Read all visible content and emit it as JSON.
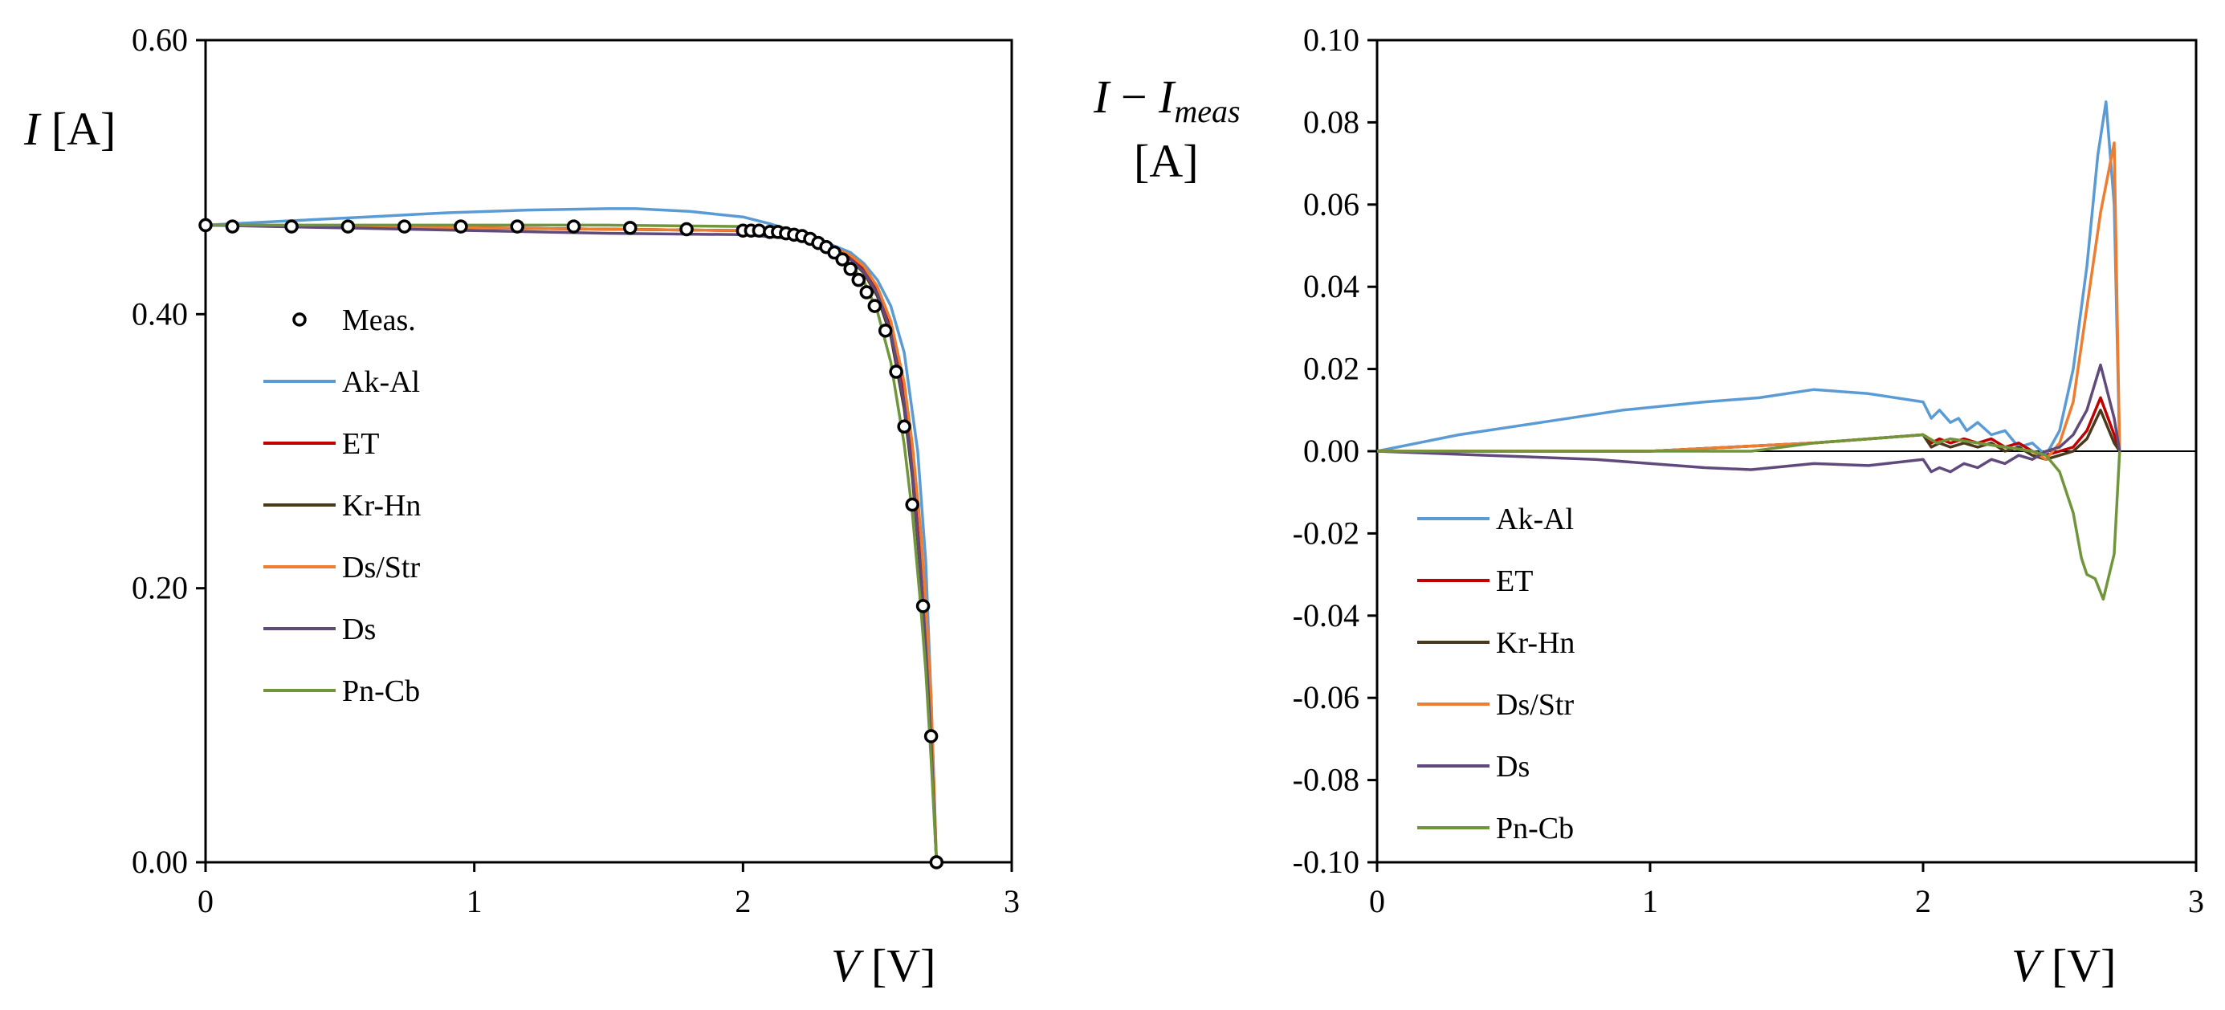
{
  "chart_data": [
    {
      "type": "line",
      "panel": "left",
      "xlabel_var": "V",
      "xlabel_unit": " [V]",
      "ylabel_var": "I",
      "ylabel_unit": " [A]",
      "xlim": [
        0,
        3
      ],
      "ylim": [
        0,
        0.6
      ],
      "xticks": [
        "0",
        "1",
        "2",
        "3"
      ],
      "yticks": [
        "0.00",
        "0.20",
        "0.40",
        "0.60"
      ],
      "legend": [
        {
          "name": "Meas.",
          "color": "#000000",
          "marker": "circle"
        },
        {
          "name": "Ak-Al",
          "color": "#5b9bd5"
        },
        {
          "name": "ET",
          "color": "#c00000"
        },
        {
          "name": "Kr-Hn",
          "color": "#4a3a1c"
        },
        {
          "name": "Ds/Str",
          "color": "#ed7d31"
        },
        {
          "name": "Ds",
          "color": "#604a7b"
        },
        {
          "name": "Pn-Cb",
          "color": "#70953b"
        }
      ],
      "measured": {
        "x": [
          0,
          0.1,
          0.32,
          0.53,
          0.74,
          0.95,
          1.16,
          1.37,
          1.58,
          1.79,
          2.0,
          2.03,
          2.06,
          2.1,
          2.13,
          2.16,
          2.19,
          2.22,
          2.25,
          2.28,
          2.31,
          2.34,
          2.37,
          2.4,
          2.43,
          2.46,
          2.49,
          2.53,
          2.57,
          2.6,
          2.63,
          2.67,
          2.7,
          2.72
        ],
        "y": [
          0.465,
          0.464,
          0.464,
          0.464,
          0.464,
          0.464,
          0.464,
          0.464,
          0.463,
          0.462,
          0.461,
          0.461,
          0.461,
          0.46,
          0.46,
          0.459,
          0.458,
          0.457,
          0.455,
          0.452,
          0.449,
          0.445,
          0.44,
          0.433,
          0.425,
          0.416,
          0.406,
          0.388,
          0.358,
          0.318,
          0.261,
          0.187,
          0.092,
          0.0
        ]
      },
      "series": [
        {
          "name": "Ak-Al",
          "color": "#5b9bd5",
          "x": [
            0,
            0.3,
            0.6,
            0.9,
            1.2,
            1.5,
            1.6,
            1.8,
            2.0,
            2.1,
            2.2,
            2.3,
            2.4,
            2.45,
            2.5,
            2.55,
            2.6,
            2.65,
            2.68,
            2.7,
            2.72
          ],
          "y": [
            0.465,
            0.468,
            0.471,
            0.474,
            0.476,
            0.477,
            0.477,
            0.475,
            0.471,
            0.466,
            0.46,
            0.453,
            0.445,
            0.437,
            0.425,
            0.406,
            0.372,
            0.3,
            0.22,
            0.12,
            0.0
          ]
        },
        {
          "name": "ET",
          "color": "#c00000",
          "x": [
            0,
            0.5,
            1.0,
            1.5,
            2.0,
            2.2,
            2.3,
            2.4,
            2.45,
            2.5,
            2.55,
            2.6,
            2.63,
            2.66,
            2.68,
            2.7,
            2.72
          ],
          "y": [
            0.465,
            0.464,
            0.463,
            0.462,
            0.461,
            0.457,
            0.452,
            0.442,
            0.433,
            0.418,
            0.39,
            0.34,
            0.29,
            0.22,
            0.16,
            0.09,
            0.0
          ]
        },
        {
          "name": "Kr-Hn",
          "color": "#4a3a1c",
          "x": [
            0,
            0.5,
            1.0,
            1.5,
            2.0,
            2.2,
            2.3,
            2.4,
            2.45,
            2.5,
            2.55,
            2.6,
            2.63,
            2.66,
            2.68,
            2.7,
            2.72
          ],
          "y": [
            0.465,
            0.464,
            0.463,
            0.462,
            0.461,
            0.457,
            0.451,
            0.44,
            0.43,
            0.413,
            0.384,
            0.331,
            0.281,
            0.212,
            0.155,
            0.085,
            0.0
          ]
        },
        {
          "name": "Ds/Str",
          "color": "#ed7d31",
          "x": [
            0,
            0.5,
            1.0,
            1.5,
            2.0,
            2.2,
            2.3,
            2.4,
            2.45,
            2.5,
            2.55,
            2.6,
            2.63,
            2.66,
            2.68,
            2.7,
            2.72
          ],
          "y": [
            0.465,
            0.464,
            0.463,
            0.462,
            0.461,
            0.457,
            0.452,
            0.443,
            0.435,
            0.42,
            0.395,
            0.35,
            0.305,
            0.245,
            0.19,
            0.12,
            0.0
          ]
        },
        {
          "name": "Ds",
          "color": "#604a7b",
          "x": [
            0,
            0.5,
            1.0,
            1.5,
            2.0,
            2.2,
            2.3,
            2.4,
            2.45,
            2.5,
            2.55,
            2.6,
            2.63,
            2.66,
            2.68,
            2.7,
            2.72
          ],
          "y": [
            0.465,
            0.463,
            0.461,
            0.459,
            0.458,
            0.455,
            0.45,
            0.44,
            0.431,
            0.415,
            0.387,
            0.335,
            0.285,
            0.215,
            0.158,
            0.088,
            0.0
          ]
        },
        {
          "name": "Pn-Cb",
          "color": "#70953b",
          "x": [
            0,
            0.5,
            1.0,
            1.5,
            2.0,
            2.2,
            2.3,
            2.4,
            2.45,
            2.5,
            2.55,
            2.6,
            2.63,
            2.66,
            2.68,
            2.7,
            2.72
          ],
          "y": [
            0.465,
            0.465,
            0.465,
            0.465,
            0.464,
            0.459,
            0.451,
            0.436,
            0.424,
            0.402,
            0.365,
            0.305,
            0.255,
            0.19,
            0.14,
            0.075,
            0.0
          ]
        }
      ]
    },
    {
      "type": "line",
      "panel": "right",
      "xlabel_var": "V",
      "xlabel_unit": " [V]",
      "ylabel_var": "I",
      "ylabel_minus": " − ",
      "ylabel_sub_var": "I",
      "ylabel_sub": "meas",
      "ylabel_unit": "[A]",
      "xlim": [
        0,
        3
      ],
      "ylim": [
        -0.1,
        0.1
      ],
      "xticks": [
        "0",
        "1",
        "2",
        "3"
      ],
      "yticks": [
        "-0.10",
        "-0.08",
        "-0.06",
        "-0.04",
        "-0.02",
        "0.00",
        "0.02",
        "0.04",
        "0.06",
        "0.08",
        "0.10"
      ],
      "legend": [
        {
          "name": "Ak-Al",
          "color": "#5b9bd5"
        },
        {
          "name": "ET",
          "color": "#c00000"
        },
        {
          "name": "Kr-Hn",
          "color": "#4a3a1c"
        },
        {
          "name": "Ds/Str",
          "color": "#ed7d31"
        },
        {
          "name": "Ds",
          "color": "#604a7b"
        },
        {
          "name": "Pn-Cb",
          "color": "#70953b"
        }
      ],
      "series": [
        {
          "name": "Ak-Al",
          "color": "#5b9bd5",
          "x": [
            0,
            0.3,
            0.6,
            0.9,
            1.2,
            1.4,
            1.6,
            1.8,
            2.0,
            2.03,
            2.06,
            2.1,
            2.13,
            2.16,
            2.2,
            2.25,
            2.3,
            2.35,
            2.4,
            2.45,
            2.5,
            2.55,
            2.6,
            2.64,
            2.67,
            2.7,
            2.72
          ],
          "y": [
            0.0,
            0.004,
            0.007,
            0.01,
            0.012,
            0.013,
            0.015,
            0.014,
            0.012,
            0.008,
            0.01,
            0.007,
            0.008,
            0.005,
            0.007,
            0.004,
            0.005,
            0.001,
            0.002,
            -0.001,
            0.005,
            0.02,
            0.045,
            0.072,
            0.085,
            0.06,
            0.0
          ]
        },
        {
          "name": "ET",
          "color": "#c00000",
          "x": [
            0,
            0.5,
            1.0,
            1.6,
            2.0,
            2.03,
            2.06,
            2.1,
            2.15,
            2.2,
            2.25,
            2.3,
            2.35,
            2.4,
            2.45,
            2.5,
            2.55,
            2.6,
            2.65,
            2.7,
            2.72
          ],
          "y": [
            0.0,
            0.0,
            0.0,
            0.002,
            0.004,
            0.002,
            0.003,
            0.002,
            0.003,
            0.002,
            0.003,
            0.001,
            0.002,
            0.0,
            -0.001,
            0.0,
            0.001,
            0.005,
            0.013,
            0.004,
            0.0
          ]
        },
        {
          "name": "Kr-Hn",
          "color": "#4a3a1c",
          "x": [
            0,
            0.5,
            1.0,
            1.6,
            2.0,
            2.03,
            2.06,
            2.1,
            2.15,
            2.2,
            2.25,
            2.3,
            2.35,
            2.4,
            2.45,
            2.5,
            2.55,
            2.6,
            2.65,
            2.7,
            2.72
          ],
          "y": [
            0.0,
            0.0,
            0.0,
            0.002,
            0.004,
            0.001,
            0.002,
            0.001,
            0.002,
            0.001,
            0.002,
            0.0,
            0.001,
            -0.001,
            -0.002,
            -0.001,
            0.0,
            0.003,
            0.01,
            0.002,
            0.0
          ]
        },
        {
          "name": "Ds/Str",
          "color": "#ed7d31",
          "x": [
            0,
            0.5,
            1.0,
            1.6,
            2.0,
            2.05,
            2.1,
            2.2,
            2.3,
            2.4,
            2.45,
            2.5,
            2.55,
            2.6,
            2.65,
            2.7,
            2.72
          ],
          "y": [
            0.0,
            0.0,
            0.0,
            0.002,
            0.004,
            0.002,
            0.003,
            0.002,
            0.001,
            0.0,
            -0.002,
            0.002,
            0.012,
            0.035,
            0.058,
            0.075,
            0.0
          ]
        },
        {
          "name": "Ds",
          "color": "#604a7b",
          "x": [
            0,
            0.4,
            0.8,
            1.2,
            1.37,
            1.6,
            1.8,
            2.0,
            2.03,
            2.06,
            2.1,
            2.15,
            2.2,
            2.25,
            2.3,
            2.35,
            2.4,
            2.45,
            2.5,
            2.55,
            2.6,
            2.65,
            2.7,
            2.72
          ],
          "y": [
            0.0,
            -0.001,
            -0.002,
            -0.004,
            -0.0045,
            -0.003,
            -0.0035,
            -0.002,
            -0.005,
            -0.004,
            -0.005,
            -0.003,
            -0.004,
            -0.002,
            -0.003,
            -0.001,
            -0.002,
            0.0,
            0.001,
            0.004,
            0.01,
            0.021,
            0.008,
            0.0
          ]
        },
        {
          "name": "Pn-Cb",
          "color": "#70953b",
          "x": [
            0,
            0.5,
            1.0,
            1.37,
            1.6,
            1.8,
            2.0,
            2.05,
            2.1,
            2.2,
            2.3,
            2.4,
            2.45,
            2.5,
            2.55,
            2.58,
            2.6,
            2.63,
            2.66,
            2.7,
            2.72
          ],
          "y": [
            0.0,
            0.0,
            0.0,
            0.0,
            0.002,
            0.003,
            0.004,
            0.002,
            0.003,
            0.002,
            0.001,
            0.0,
            -0.001,
            -0.005,
            -0.015,
            -0.026,
            -0.03,
            -0.031,
            -0.036,
            -0.025,
            0.0
          ]
        }
      ]
    }
  ]
}
